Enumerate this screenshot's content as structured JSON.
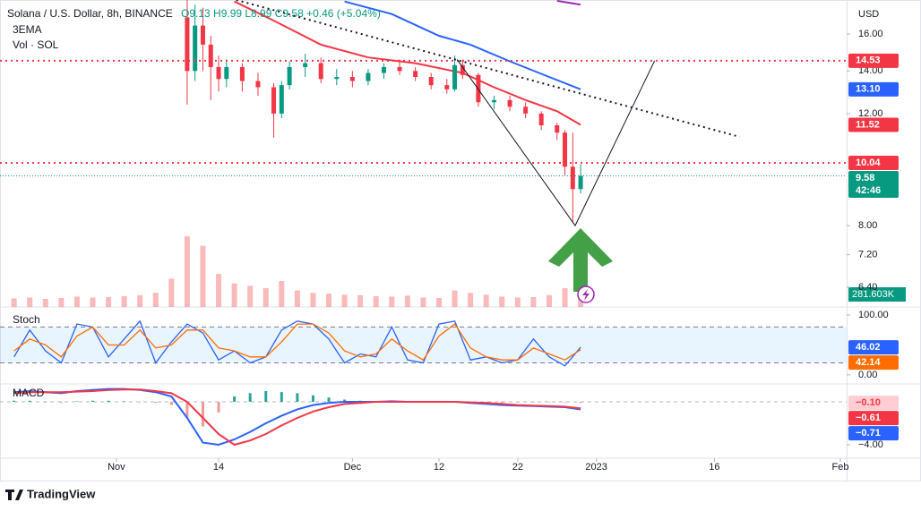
{
  "header": {
    "title": "Solana / U.S. Dollar, 8h, BINANCE",
    "ohlc": "O9.13 H9.99 L8.99 C9.58 +0.46 (+5.04%)",
    "indicators": [
      "3EMA",
      "Vol · SOL"
    ],
    "unit": "USD"
  },
  "footer": {
    "brand": "TradingView"
  },
  "chart_data": [
    {
      "type": "candlestick",
      "log_scale": true,
      "up_color": "#089981",
      "down_color": "#f23645",
      "xlim": [
        -14.1,
        92.8
      ],
      "xticks": [
        {
          "value": 0,
          "label": "Nov"
        },
        {
          "value": 13,
          "label": "14"
        },
        {
          "value": 30,
          "label": "Dec"
        },
        {
          "value": 41,
          "label": "12"
        },
        {
          "value": 51,
          "label": "22"
        },
        {
          "value": 61,
          "label": "2023"
        },
        {
          "value": 76,
          "label": "16"
        },
        {
          "value": 92,
          "label": "Feb"
        }
      ],
      "ylim": [
        5.96,
        18.1
      ],
      "yticks": [
        {
          "value": 6.4,
          "label": "6.40"
        },
        {
          "value": 7.2,
          "label": "7.20"
        },
        {
          "value": 8,
          "label": "8.00"
        },
        {
          "value": 12,
          "label": "12.00"
        },
        {
          "value": 14,
          "label": "14.00"
        },
        {
          "value": 16,
          "label": "16.00"
        }
      ],
      "x": [
        9,
        10,
        11,
        12,
        13,
        14,
        16,
        18,
        20,
        21,
        22,
        24,
        26,
        28,
        30,
        32,
        34,
        36,
        38,
        40,
        42,
        43,
        44,
        46,
        48,
        50,
        52,
        54,
        56,
        57,
        58,
        59
      ],
      "open": [
        17.0,
        14.0,
        16.5,
        15.4,
        14.2,
        13.6,
        14.2,
        13.5,
        13.2,
        12.0,
        13.3,
        14.2,
        14.4,
        13.6,
        13.7,
        13.5,
        13.9,
        14.2,
        14.0,
        13.7,
        13.3,
        13.1,
        14.3,
        13.8,
        12.5,
        12.6,
        12.3,
        12.0,
        11.5,
        11.2,
        9.9,
        9.13
      ],
      "high": [
        18.1,
        17.8,
        17.6,
        15.9,
        14.8,
        14.6,
        14.4,
        13.9,
        13.4,
        13.5,
        14.5,
        14.9,
        14.7,
        14.1,
        14.0,
        14.1,
        14.4,
        14.6,
        14.2,
        13.9,
        13.6,
        14.8,
        14.6,
        13.9,
        12.8,
        12.8,
        12.5,
        12.1,
        11.6,
        11.3,
        11.2,
        9.99
      ],
      "low": [
        12.4,
        13.5,
        14.0,
        12.6,
        13.0,
        13.2,
        13.0,
        12.8,
        11.0,
        11.8,
        13.1,
        13.7,
        13.4,
        13.3,
        13.2,
        13.3,
        13.6,
        13.8,
        13.5,
        13.1,
        12.9,
        13.0,
        13.6,
        12.3,
        12.2,
        12.1,
        11.8,
        11.3,
        10.9,
        9.6,
        8.1,
        8.99
      ],
      "close": [
        14.0,
        16.5,
        15.4,
        14.2,
        13.6,
        14.2,
        13.5,
        13.2,
        12.0,
        13.3,
        14.2,
        14.4,
        13.6,
        13.7,
        13.5,
        13.9,
        14.2,
        14.0,
        13.7,
        13.3,
        13.1,
        14.3,
        13.8,
        12.5,
        12.6,
        12.3,
        12.0,
        11.5,
        11.2,
        9.9,
        9.13,
        9.58
      ],
      "series": [
        {
          "color": "#f23645",
          "x": [
            15,
            20,
            26,
            32,
            38,
            44,
            48,
            52,
            56,
            59
          ],
          "values": [
            18.0,
            16.8,
            15.4,
            14.7,
            14.4,
            13.9,
            13.2,
            12.6,
            12.1,
            11.52
          ],
          "last_label": "11.52"
        },
        {
          "color": "#2962ff",
          "x": [
            29,
            35,
            41,
            45,
            50,
            55,
            59
          ],
          "values": [
            18.0,
            17.2,
            15.9,
            15.4,
            14.5,
            13.7,
            13.1
          ],
          "last_label": "13.10"
        },
        {
          "color": "#9c27b0",
          "x": [
            56,
            59
          ],
          "values": [
            18.05,
            17.8
          ]
        }
      ],
      "levels": [
        {
          "value": 14.53,
          "label": "14.53",
          "color": "#f23645"
        },
        {
          "value": 10.04,
          "label": "10.04",
          "color": "#f23645"
        }
      ],
      "last_price": {
        "value": 9.58,
        "label": "9.58",
        "countdown": "42:46",
        "color": "#089981"
      },
      "drawings": [
        {
          "style": "dotted",
          "x": [
            15.25,
            79.2
          ],
          "y": [
            18.1,
            11.03
          ]
        },
        {
          "style": "solid",
          "x": [
            43.3,
            58.3,
            68.4
          ],
          "y": [
            14.6,
            8.0,
            14.53
          ]
        }
      ],
      "volume": {
        "color": "rgba(239,83,80,0.4)",
        "ylim": [
          0,
          1900000
        ],
        "label": "281.603K",
        "x": [
          -13,
          -11,
          -9,
          -7,
          -5,
          -3,
          -1,
          1,
          3,
          5,
          7,
          9,
          11,
          13,
          15,
          17,
          19,
          21,
          23,
          25,
          27,
          29,
          31,
          33,
          35,
          37,
          39,
          41,
          43,
          45,
          47,
          49,
          51,
          53,
          55,
          57,
          59
        ],
        "values": [
          180000,
          200000,
          170000,
          190000,
          220000,
          200000,
          210000,
          230000,
          250000,
          300000,
          600000,
          1500000,
          1300000,
          700000,
          500000,
          450000,
          400000,
          550000,
          350000,
          300000,
          280000,
          260000,
          250000,
          230000,
          220000,
          240000,
          200000,
          190000,
          350000,
          300000,
          260000,
          220000,
          200000,
          210000,
          250000,
          400000,
          281603
        ]
      }
    },
    {
      "type": "line",
      "title": "Stoch",
      "ylim": [
        -15.2,
        113.6
      ],
      "yticks": [
        {
          "value": 100,
          "label": "100.00"
        },
        {
          "value": 0,
          "label": "0.00"
        }
      ],
      "bands": [
        20,
        80
      ],
      "x": [
        -13,
        -11,
        -9,
        -7,
        -5,
        -3,
        -1,
        1,
        3,
        5,
        7,
        9,
        11,
        13,
        15,
        17,
        19,
        21,
        23,
        25,
        27,
        29,
        31,
        33,
        35,
        37,
        39,
        41,
        43,
        45,
        47,
        49,
        51,
        53,
        55,
        57,
        59
      ],
      "series": [
        {
          "color": "#2962ff",
          "values": [
            30,
            75,
            40,
            20,
            85,
            80,
            30,
            60,
            90,
            20,
            55,
            85,
            70,
            25,
            40,
            20,
            30,
            75,
            90,
            85,
            60,
            20,
            35,
            30,
            80,
            25,
            20,
            85,
            90,
            25,
            30,
            20,
            25,
            60,
            30,
            15,
            46.02
          ],
          "last_label": "46.02"
        },
        {
          "color": "#ff6d00",
          "values": [
            40,
            60,
            50,
            30,
            65,
            80,
            50,
            50,
            75,
            45,
            50,
            75,
            75,
            45,
            40,
            30,
            30,
            55,
            85,
            85,
            70,
            40,
            30,
            35,
            60,
            40,
            25,
            65,
            85,
            45,
            30,
            25,
            25,
            45,
            35,
            25,
            42.14
          ],
          "last_label": "42.14"
        }
      ]
    },
    {
      "type": "macd",
      "title": "MACD",
      "ylim": [
        -5.25,
        1.58
      ],
      "yticks": [
        {
          "value": -4,
          "label": "−4.00"
        }
      ],
      "hlines": [
        0
      ],
      "x": [
        -13,
        -11,
        -9,
        -7,
        -5,
        -3,
        -1,
        1,
        3,
        5,
        7,
        9,
        11,
        13,
        15,
        17,
        19,
        21,
        23,
        25,
        27,
        29,
        31,
        33,
        35,
        37,
        39,
        41,
        43,
        45,
        47,
        49,
        51,
        53,
        55,
        57,
        59
      ],
      "histogram": {
        "up_color": "#26a69a",
        "down_color": "#ef9a9a",
        "last_label": "−0.10",
        "values": [
          0.1,
          0.1,
          0,
          -0.1,
          0.05,
          0.1,
          0.1,
          0.05,
          -0.05,
          -0.1,
          -0.3,
          -1.5,
          -2.3,
          -1.0,
          0.5,
          0.8,
          1.0,
          0.9,
          0.8,
          0.6,
          0.4,
          0.2,
          0.1,
          0,
          0.05,
          0,
          0,
          0,
          0,
          -0.05,
          -0.1,
          -0.1,
          -0.05,
          -0.05,
          -0.05,
          -0.05,
          -0.1
        ]
      },
      "series": [
        {
          "color": "#2962ff",
          "values": [
            0.9,
            1.0,
            0.9,
            0.8,
            1.0,
            1.1,
            1.2,
            1.2,
            1.1,
            0.9,
            0.5,
            -1.5,
            -3.8,
            -4.0,
            -3.5,
            -2.8,
            -2.0,
            -1.3,
            -0.7,
            -0.3,
            -0.1,
            0,
            0,
            0,
            0.05,
            0,
            0,
            0,
            0,
            -0.1,
            -0.2,
            -0.3,
            -0.35,
            -0.4,
            -0.45,
            -0.5,
            -0.71
          ],
          "last_label": "−0.71"
        },
        {
          "color": "#f23645",
          "values": [
            0.8,
            0.9,
            0.9,
            0.9,
            0.95,
            1.0,
            1.1,
            1.15,
            1.15,
            1.0,
            0.8,
            0.0,
            -1.5,
            -3.0,
            -4.0,
            -3.6,
            -3.0,
            -2.2,
            -1.5,
            -0.9,
            -0.5,
            -0.2,
            -0.1,
            0,
            0,
            0,
            0,
            0,
            0,
            -0.05,
            -0.1,
            -0.2,
            -0.3,
            -0.35,
            -0.4,
            -0.45,
            -0.61
          ],
          "last_label": "−0.61"
        }
      ]
    }
  ]
}
